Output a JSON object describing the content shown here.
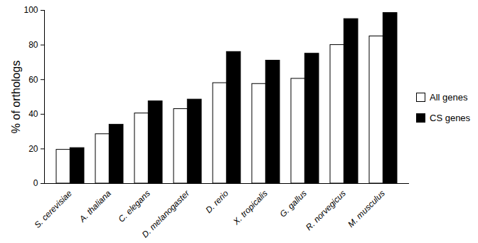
{
  "chart_data": {
    "type": "bar",
    "y_label": "% of orthologs",
    "categories": [
      "S. cerevisiae",
      "A. thaliana",
      "C. elegans",
      "D. melanogaster",
      "D. rerio",
      "X. tropicalis",
      "G. gallus",
      "R. norvegicus",
      "M. musculus"
    ],
    "series": [
      {
        "name": "All genes",
        "color": "#ffffff",
        "values": [
          19.5,
          28.5,
          40.5,
          43,
          58,
          57.5,
          60.5,
          80,
          85
        ]
      },
      {
        "name": "CS genes",
        "color": "#000000",
        "values": [
          20.5,
          34,
          47.5,
          48.5,
          76,
          71,
          75,
          95,
          98.5
        ]
      }
    ],
    "ylim": [
      0,
      100
    ],
    "yticks": [
      0,
      20,
      40,
      60,
      80,
      100
    ],
    "grid": false,
    "legend": "right"
  }
}
